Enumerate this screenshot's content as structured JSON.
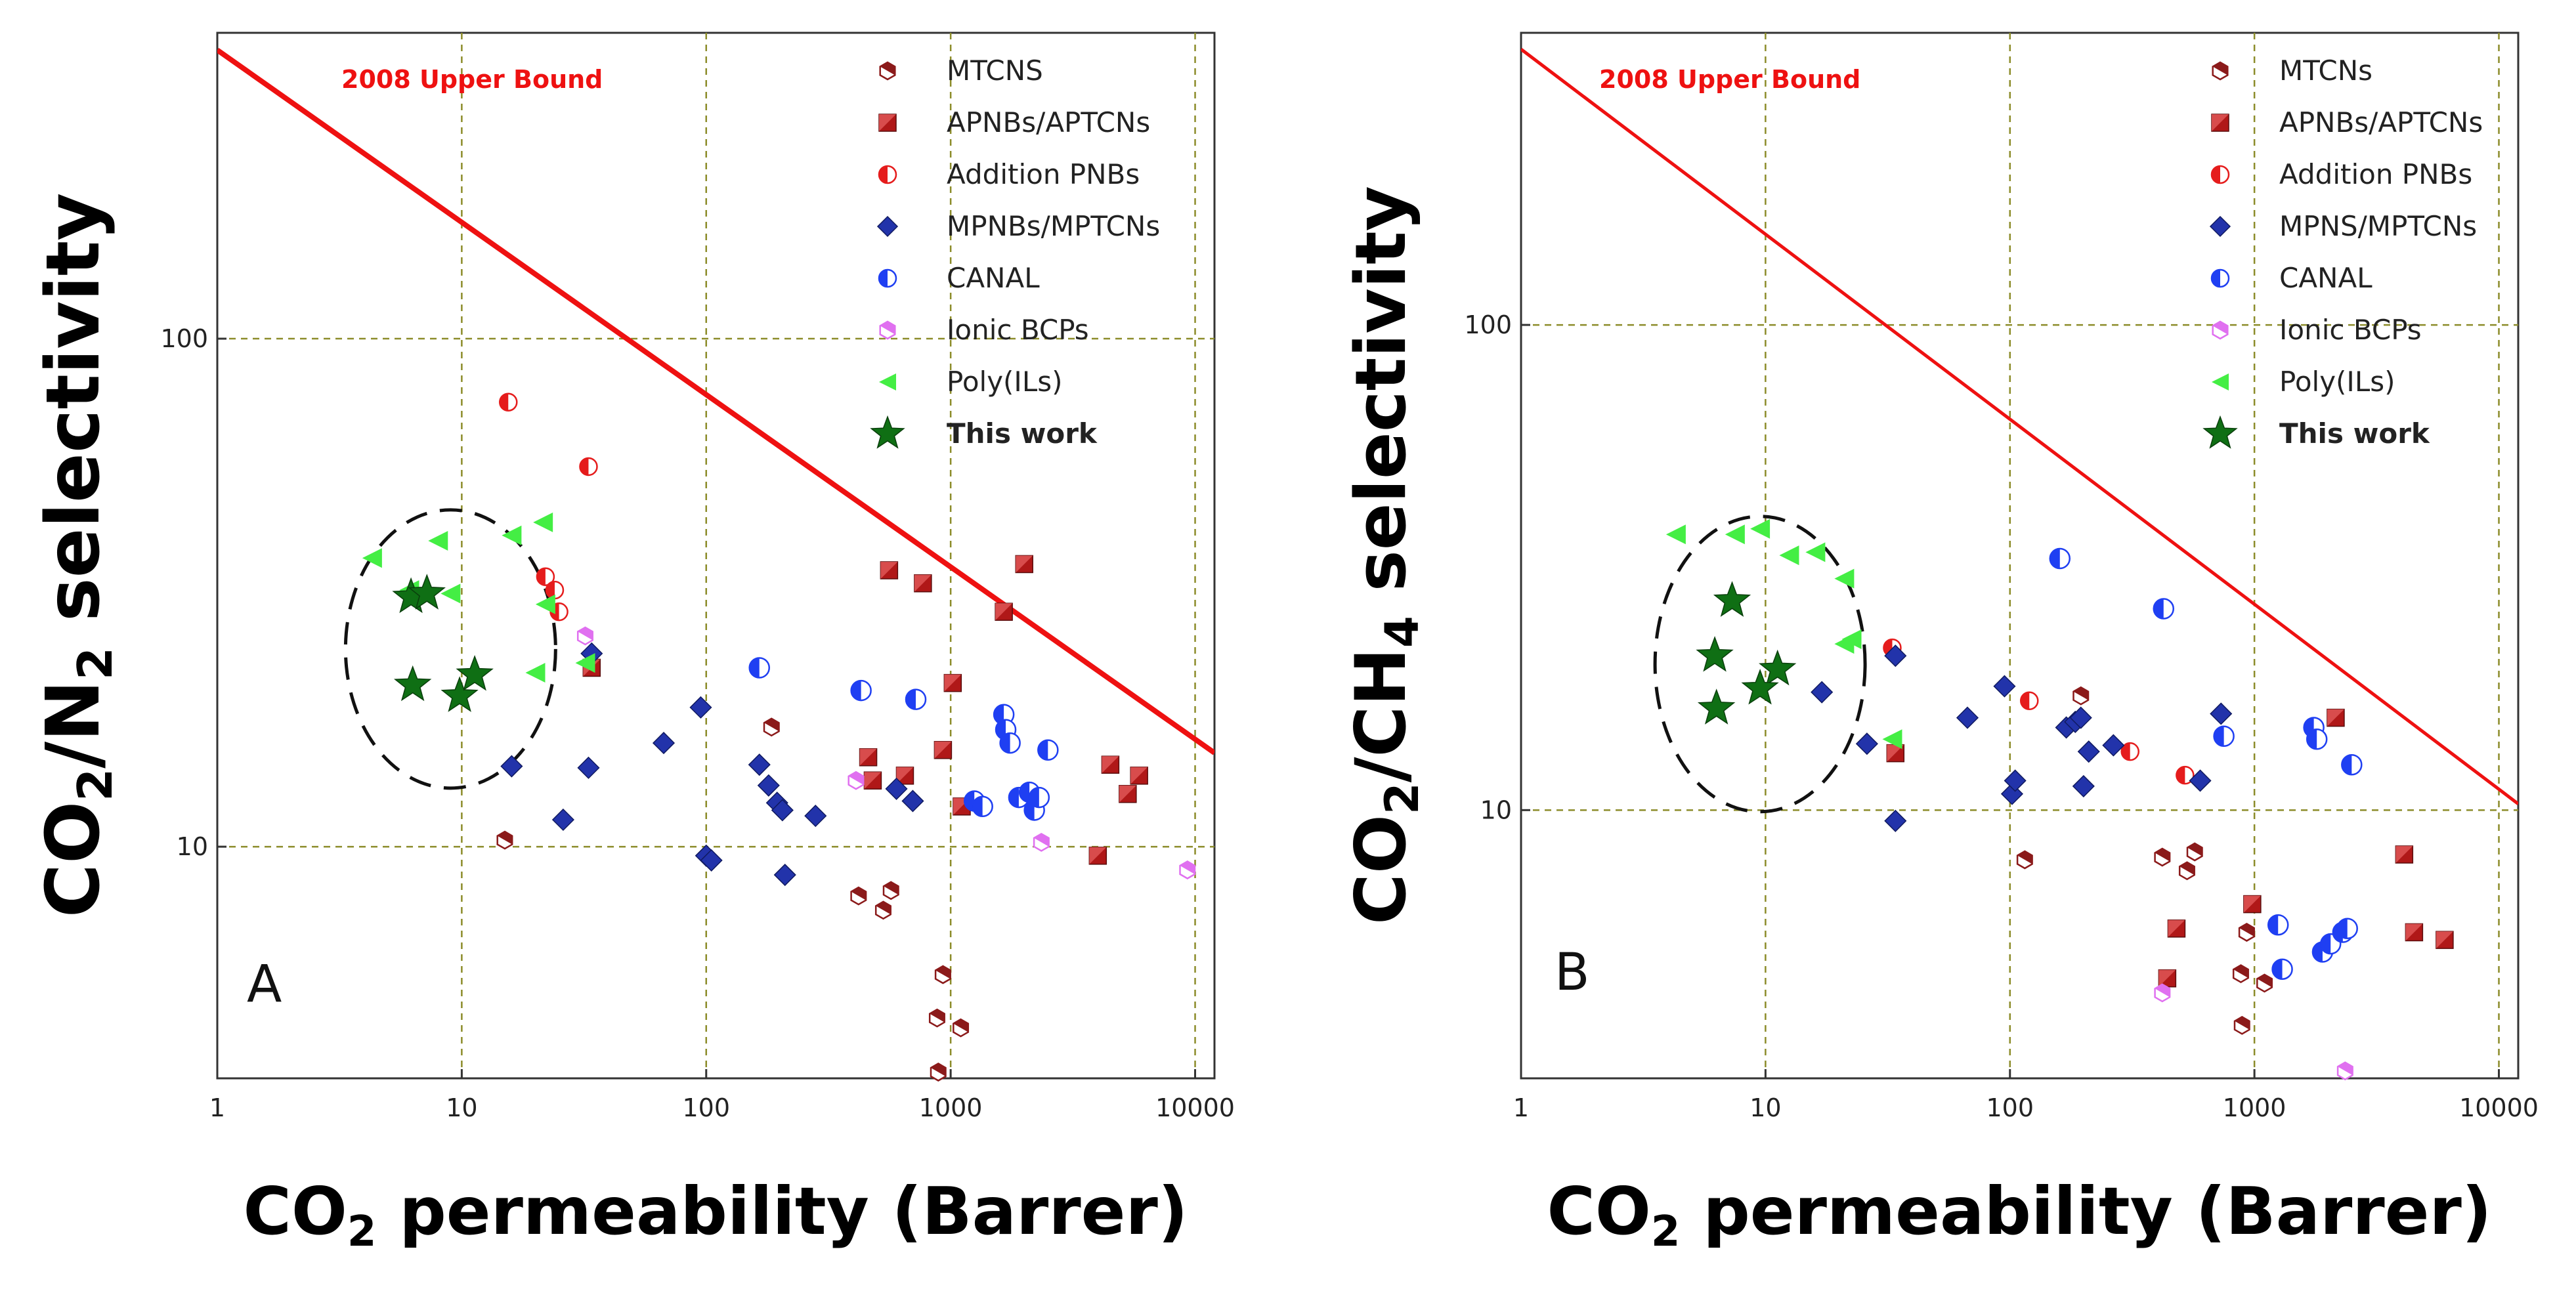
{
  "colors": {
    "grid": "#8c8c2a",
    "bound": "#ee1111",
    "mtcn": "#8b1a1a",
    "apnb": "#b01818",
    "addition": "#e51c1c",
    "mpnb": "#2233aa",
    "canal": "#1f3ff2",
    "ionic": "#e070f0",
    "poly": "#44ee44",
    "star": "#0f6f14",
    "circle": "#111111"
  },
  "chart_data": [
    {
      "type": "scatter",
      "panel_label": "A",
      "upper_bound_label": "2008 Upper Bound",
      "xlabel_main": "CO",
      "xlabel_sub": "2",
      "xlabel_rest": " permeability (Barrer)",
      "ylabel_main": "CO",
      "ylabel_sub1": "2",
      "ylabel_mid": "/N",
      "ylabel_sub2": "2",
      "ylabel_rest": " selectivity",
      "x_scale": "log",
      "y_scale": "log",
      "xlim": [
        1,
        12000
      ],
      "ylim": [
        3.5,
        400
      ],
      "x_ticks": [
        1,
        10,
        100,
        1000,
        10000
      ],
      "x_tick_labels": [
        "1",
        "10",
        "100",
        "1000",
        "10000"
      ],
      "y_ticks": [
        10,
        100
      ],
      "y_tick_labels": [
        "10",
        "100"
      ],
      "grid": true,
      "upper_bound_line": [
        [
          1,
          370
        ],
        [
          12000,
          15.3
        ]
      ],
      "highlight_circle": {
        "center": [
          9,
          24.5
        ],
        "label": "dashed ellipse around This work"
      },
      "legend": [
        "MTCNS",
        "APNBs/APTCNs",
        "Addition PNBs",
        "MPNBs/MPTCNs",
        "CANAL",
        "Ionic BCPs",
        "Poly(ILs)",
        "This work"
      ],
      "series": [
        {
          "name": "MTCNS",
          "marker": "hex",
          "points": [
            [
              15,
              10.3
            ],
            [
              185,
              17.2
            ],
            [
              420,
              8
            ],
            [
              530,
              7.5
            ],
            [
              570,
              8.2
            ],
            [
              880,
              4.6
            ],
            [
              930,
              5.6
            ],
            [
              1100,
              4.4
            ],
            [
              890,
              3.6
            ]
          ]
        },
        {
          "name": "APNBs/APTCNs",
          "marker": "square",
          "points": [
            [
              34,
              22.5
            ],
            [
              460,
              15
            ],
            [
              480,
              13.5
            ],
            [
              560,
              35
            ],
            [
              650,
              13.8
            ],
            [
              770,
              33
            ],
            [
              930,
              15.5
            ],
            [
              1020,
              21
            ],
            [
              1110,
              12
            ],
            [
              1650,
              29
            ],
            [
              2000,
              36
            ],
            [
              4000,
              9.6
            ],
            [
              4500,
              14.5
            ],
            [
              5300,
              12.7
            ],
            [
              5900,
              13.8
            ]
          ]
        },
        {
          "name": "Addition PNBs",
          "marker": "half-circle",
          "points": [
            [
              15.5,
              75
            ],
            [
              22,
              34
            ],
            [
              24,
              32
            ],
            [
              25,
              29
            ],
            [
              33,
              56
            ]
          ]
        },
        {
          "name": "MPNBs/MPTCNs",
          "marker": "diamond",
          "points": [
            [
              16,
              14.4
            ],
            [
              26,
              11.3
            ],
            [
              33,
              14.3
            ],
            [
              34,
              24
            ],
            [
              67,
              16
            ],
            [
              95,
              18.8
            ],
            [
              100,
              9.6
            ],
            [
              105,
              9.4
            ],
            [
              165,
              14.5
            ],
            [
              180,
              13.2
            ],
            [
              195,
              12.2
            ],
            [
              205,
              11.8
            ],
            [
              210,
              8.8
            ],
            [
              280,
              11.5
            ],
            [
              600,
              13
            ],
            [
              700,
              12.3
            ]
          ]
        },
        {
          "name": "CANAL",
          "marker": "half-circle",
          "points": [
            [
              165,
              22.5
            ],
            [
              430,
              20.3
            ],
            [
              720,
              19.5
            ],
            [
              1250,
              12.3
            ],
            [
              1350,
              12
            ],
            [
              1650,
              18.2
            ],
            [
              1680,
              17
            ],
            [
              1750,
              16
            ],
            [
              1900,
              12.5
            ],
            [
              2100,
              12.8
            ],
            [
              2200,
              11.8
            ],
            [
              2300,
              12.5
            ],
            [
              2500,
              15.5
            ]
          ]
        },
        {
          "name": "Ionic BCPs",
          "marker": "hex",
          "points": [
            [
              32,
              26
            ],
            [
              410,
              13.5
            ],
            [
              2350,
              10.2
            ],
            [
              9300,
              9
            ]
          ]
        },
        {
          "name": "Poly(ILs)",
          "marker": "triangle-left",
          "points": [
            [
              4.3,
              37
            ],
            [
              6.1,
              32
            ],
            [
              8,
              40
            ],
            [
              9,
              31.5
            ],
            [
              16,
              41
            ],
            [
              20,
              22
            ],
            [
              21.5,
              43.5
            ],
            [
              22,
              30
            ],
            [
              32,
              23
            ]
          ]
        },
        {
          "name": "This work",
          "marker": "star",
          "points": [
            [
              6.2,
              31
            ],
            [
              7.2,
              31.5
            ],
            [
              6.3,
              20.8
            ],
            [
              9.8,
              19.8
            ],
            [
              11.3,
              21.8
            ]
          ]
        }
      ]
    },
    {
      "type": "scatter",
      "panel_label": "B",
      "upper_bound_label": "2008 Upper Bound",
      "xlabel_main": "CO",
      "xlabel_sub": "2",
      "xlabel_rest": " permeability (Barrer)",
      "ylabel_main": "CO",
      "ylabel_sub1": "2",
      "ylabel_mid": "/CH",
      "ylabel_sub2": "4",
      "ylabel_rest": " selectivity",
      "x_scale": "log",
      "y_scale": "log",
      "xlim": [
        1,
        12000
      ],
      "ylim": [
        2.8,
        400
      ],
      "x_ticks": [
        1,
        10,
        100,
        1000,
        10000
      ],
      "x_tick_labels": [
        "1",
        "10",
        "100",
        "1000",
        "10000"
      ],
      "y_ticks": [
        10,
        100
      ],
      "y_tick_labels": [
        "10",
        "100"
      ],
      "grid": true,
      "upper_bound_line": [
        [
          1,
          370
        ],
        [
          12000,
          10.3
        ]
      ],
      "highlight_circle": {
        "center": [
          9.5,
          20
        ],
        "label": "dashed ellipse around This work"
      },
      "legend": [
        "MTCNs",
        "APNBs/APTCNs",
        "Addition PNBs",
        "MPNS/MPTCNs",
        "CANAL",
        "Ionic BCPs",
        "Poly(ILs)",
        "This work"
      ],
      "series": [
        {
          "name": "MTCNs",
          "marker": "hex",
          "points": [
            [
              115,
              7.9
            ],
            [
              195,
              17.2
            ],
            [
              420,
              8
            ],
            [
              530,
              7.5
            ],
            [
              570,
              8.2
            ],
            [
              880,
              4.6
            ],
            [
              930,
              5.6
            ],
            [
              1100,
              4.4
            ],
            [
              890,
              3.6
            ]
          ]
        },
        {
          "name": "APNBs/APTCNs",
          "marker": "square",
          "points": [
            [
              34,
              13.1
            ],
            [
              440,
              4.5
            ],
            [
              480,
              5.7
            ],
            [
              980,
              6.4
            ],
            [
              2150,
              15.5
            ],
            [
              4100,
              8.1
            ],
            [
              4500,
              5.6
            ],
            [
              6000,
              5.4
            ]
          ]
        },
        {
          "name": "Addition PNBs",
          "marker": "half-circle",
          "points": [
            [
              33,
              21.6
            ],
            [
              120,
              16.8
            ],
            [
              310,
              13.2
            ],
            [
              520,
              11.8
            ]
          ]
        },
        {
          "name": "MPNS/MPTCNs",
          "marker": "diamond",
          "points": [
            [
              17,
              17.5
            ],
            [
              26,
              13.7
            ],
            [
              34,
              20.8
            ],
            [
              34,
              9.5
            ],
            [
              67,
              15.5
            ],
            [
              95,
              18
            ],
            [
              102,
              10.8
            ],
            [
              105,
              11.5
            ],
            [
              170,
              14.8
            ],
            [
              185,
              15.2
            ],
            [
              195,
              15.5
            ],
            [
              200,
              11.2
            ],
            [
              210,
              13.2
            ],
            [
              265,
              13.6
            ],
            [
              600,
              11.5
            ],
            [
              730,
              15.8
            ]
          ]
        },
        {
          "name": "CANAL",
          "marker": "half-circle",
          "points": [
            [
              160,
              33
            ],
            [
              425,
              26
            ],
            [
              750,
              14.2
            ],
            [
              1250,
              5.8
            ],
            [
              1300,
              4.7
            ],
            [
              1750,
              14.8
            ],
            [
              1800,
              14
            ],
            [
              1900,
              5.1
            ],
            [
              2050,
              5.3
            ],
            [
              2300,
              5.6
            ],
            [
              2400,
              5.7
            ],
            [
              2500,
              12.4
            ]
          ]
        },
        {
          "name": "Ionic BCPs",
          "marker": "hex",
          "points": [
            [
              420,
              4.2
            ],
            [
              2350,
              2.9
            ]
          ]
        },
        {
          "name": "Poly(ILs)",
          "marker": "triangle-left",
          "points": [
            [
              4.3,
              37
            ],
            [
              7.5,
              37
            ],
            [
              9.5,
              38
            ],
            [
              12.5,
              33.5
            ],
            [
              16,
              34
            ],
            [
              21,
              30
            ],
            [
              22.5,
              22.5
            ],
            [
              21,
              22
            ],
            [
              33,
              14
            ]
          ]
        },
        {
          "name": "This work",
          "marker": "star",
          "points": [
            [
              7.3,
              27
            ],
            [
              6.2,
              20.8
            ],
            [
              11.2,
              19.5
            ],
            [
              6.3,
              16.2
            ],
            [
              9.5,
              17.8
            ]
          ]
        }
      ]
    }
  ]
}
